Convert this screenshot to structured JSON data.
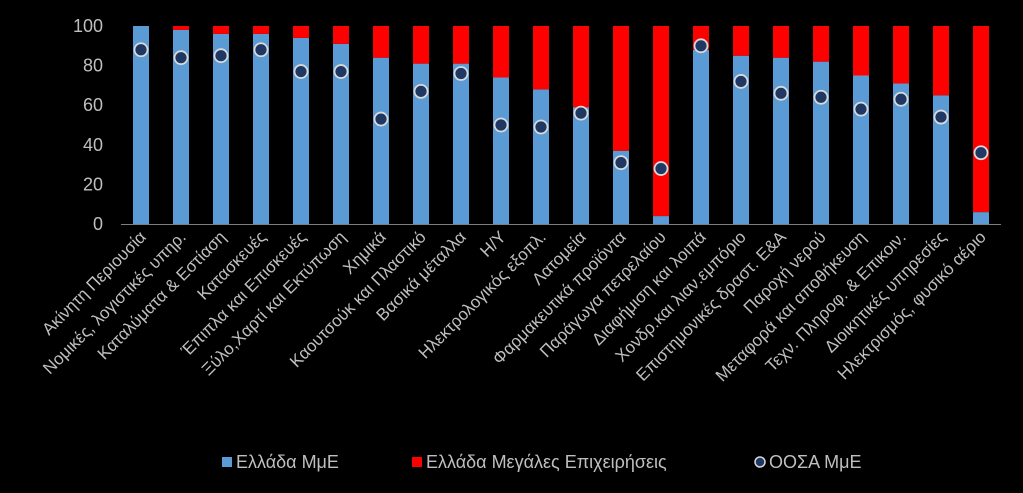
{
  "chart_data": {
    "type": "bar",
    "stacked": true,
    "categories": [
      "Ακίνητη Περιουσία",
      "Νομικές, λογιστικές υπηρ.",
      "Καταλύματα & Εστίαση",
      "Κατασκευές",
      "Έπιπλα και Επισκευές",
      "Ξύλο,Χαρτί και Εκτύπωση",
      "Χημικά",
      "Καουτσούκ και Πλαστικό",
      "Βασικά μέταλλα",
      "Η/Υ",
      "Ηλεκτρολογικός εξοπλ.",
      "Λατομεία",
      "Φαρμακευτικά προϊόντα",
      "Παράγωγα πετρελαίου",
      "Διαφήμιση και λοιπά",
      "Χονδρ.και λιαν.εμπόριο",
      "Επιστημονικές δραστ. Ε&Α",
      "Παροχή νερού",
      "Μεταφορά και αποθήκευση",
      "Τεχν. Πληροφ. & Επικοιν.",
      "Διοικητικές υπηρεσίες",
      "Ηλεκτρισμός, φυσικό αέριο"
    ],
    "series": [
      {
        "name": "Ελλάδα ΜμΕ",
        "type": "bar",
        "color": "#5b9bd5",
        "values": [
          100,
          98,
          96,
          96,
          94,
          91,
          84,
          81,
          81,
          74,
          68,
          59,
          37,
          4,
          88,
          85,
          84,
          82,
          75,
          71,
          65,
          6
        ]
      },
      {
        "name": "Ελλάδα Μεγάλες  Επιχειρήσεις",
        "type": "bar",
        "color": "#ff0000",
        "values": [
          0,
          2,
          4,
          4,
          6,
          9,
          16,
          19,
          19,
          26,
          32,
          41,
          63,
          96,
          12,
          15,
          16,
          18,
          25,
          29,
          35,
          94
        ]
      },
      {
        "name": "ΟΟΣΑ ΜμΕ",
        "type": "marker",
        "color": "#1f3864",
        "values": [
          88,
          84,
          85,
          88,
          77,
          77,
          53,
          67,
          76,
          50,
          49,
          56,
          31,
          28,
          90,
          72,
          66,
          64,
          58,
          63,
          54,
          36
        ]
      }
    ],
    "y_ticks": [
      "0",
      "20",
      "40",
      "60",
      "80",
      "100"
    ],
    "ylim": [
      0,
      100
    ],
    "grid": false,
    "legend_position": "bottom"
  }
}
